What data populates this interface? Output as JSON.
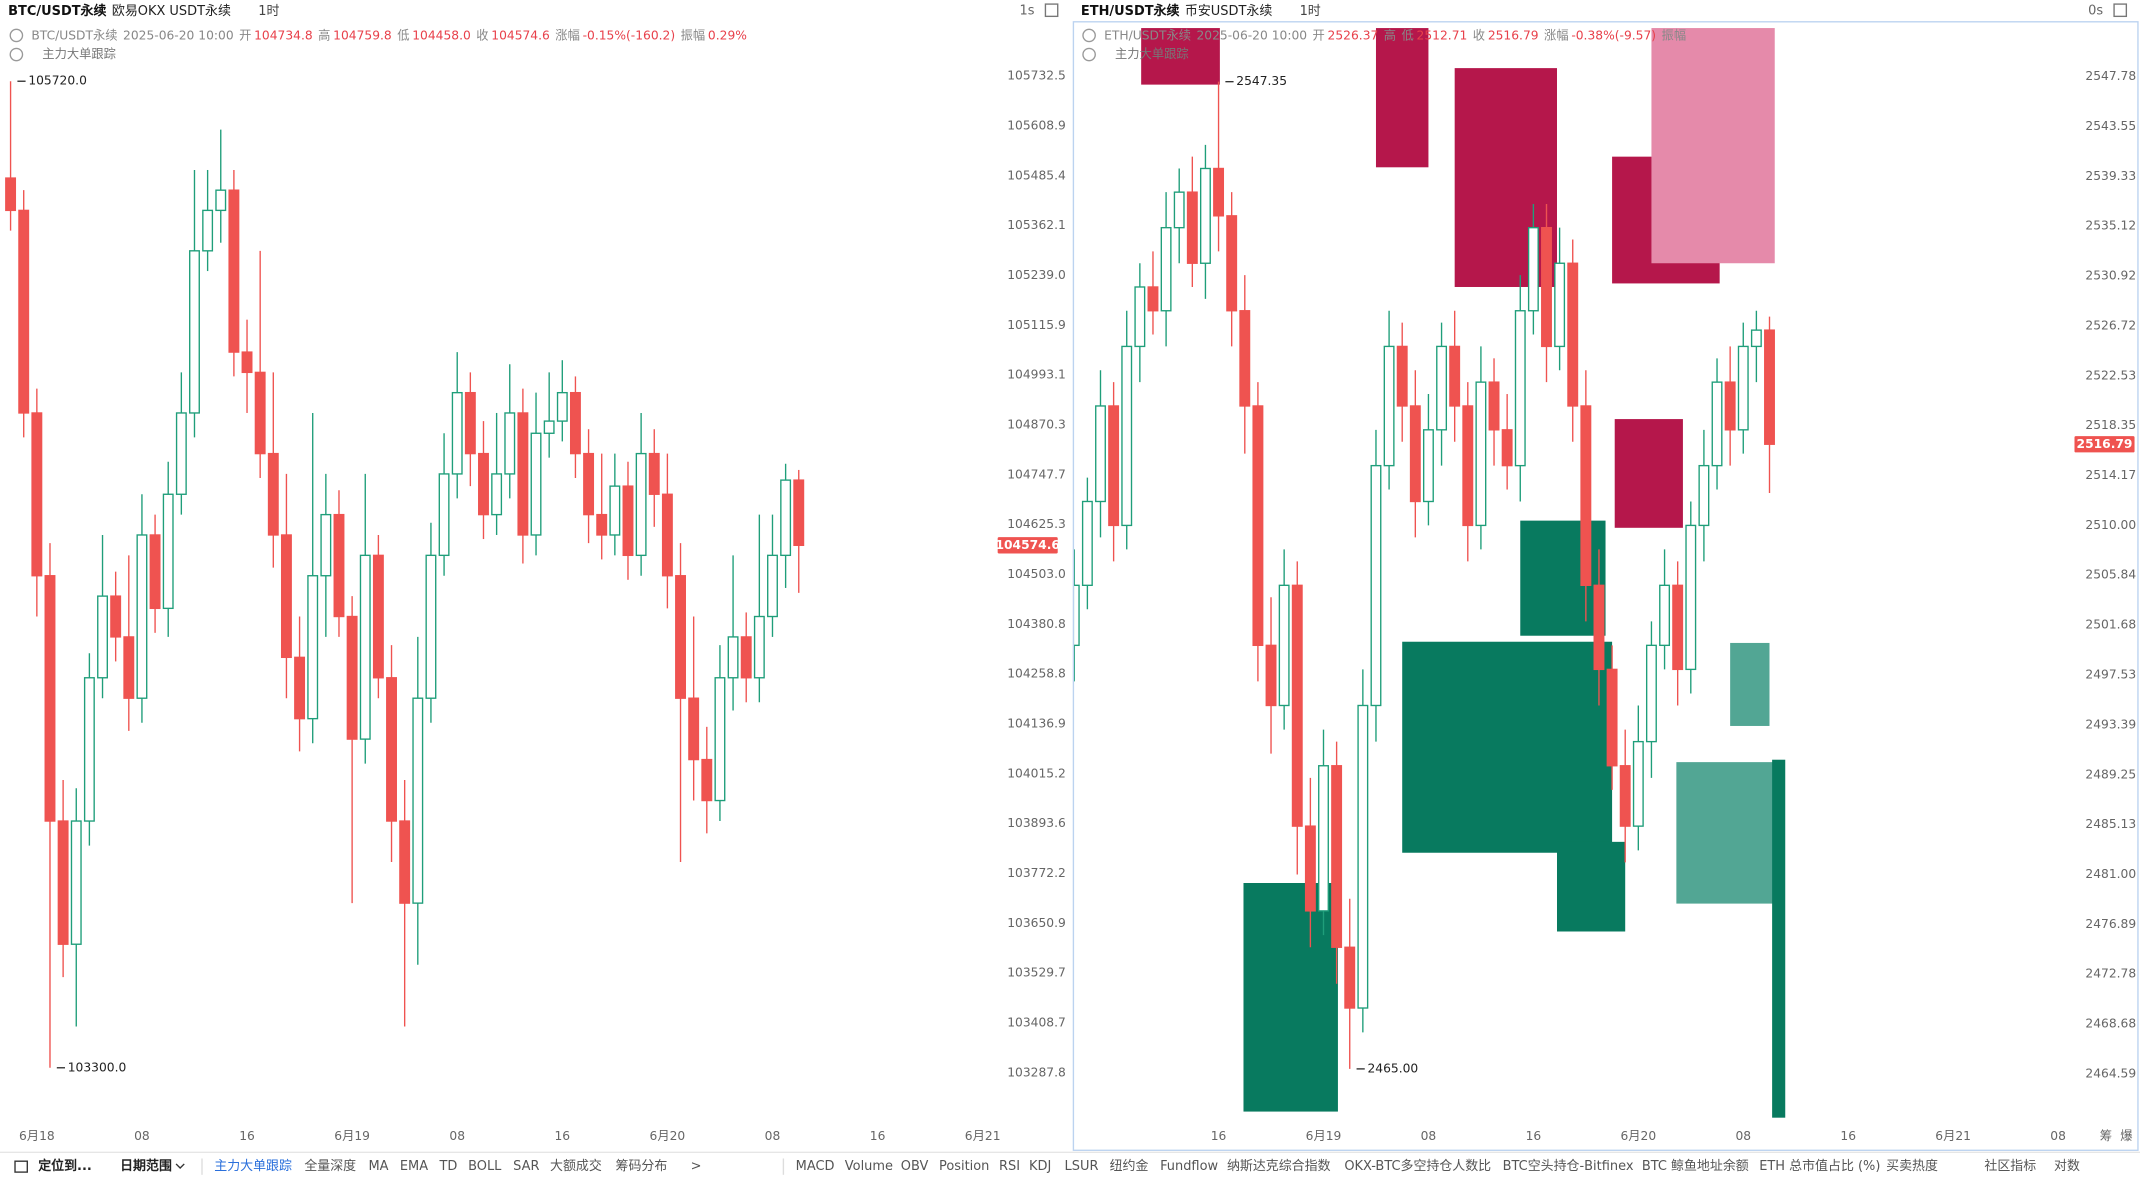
{
  "chart_data": [
    {
      "type": "candlestick",
      "symbol": "BTC/USDT永续",
      "exchange": "欧易OKX USDT永续",
      "interval": "1时",
      "speed": "1s",
      "info": {
        "symbol": "BTC/USDT永续",
        "datetime": "2025-06-20 10:00",
        "fields": [
          {
            "label": "开",
            "value": "104734.8"
          },
          {
            "label": "高",
            "value": "104759.8"
          },
          {
            "label": "低",
            "value": "104458.0"
          },
          {
            "label": "收",
            "value": "104574.6"
          },
          {
            "label": "涨幅",
            "value": "-0.15%(-160.2)"
          },
          {
            "label": "振幅",
            "value": "0.29%"
          }
        ]
      },
      "indicator": "主力大单跟踪",
      "x": [
        -2,
        -1,
        0,
        1,
        2,
        3,
        4,
        5,
        6,
        7,
        8,
        9,
        10,
        11,
        12,
        13,
        14,
        15,
        16,
        17,
        18,
        19,
        20,
        21,
        22,
        23,
        24,
        25,
        26,
        27,
        28,
        29,
        30,
        31,
        32,
        33,
        34,
        35,
        36,
        37,
        38,
        39,
        40,
        41,
        42,
        43,
        44,
        45,
        46,
        47,
        48,
        49,
        50,
        51,
        52,
        53,
        54,
        55,
        56,
        57,
        58
      ],
      "open": [
        105480,
        105400,
        104900,
        104500,
        103900,
        103600,
        103900,
        104250,
        104450,
        104350,
        104200,
        104600,
        104420,
        104700,
        104900,
        105300,
        105400,
        105450,
        105050,
        105000,
        104800,
        104600,
        104300,
        104150,
        104500,
        104650,
        104400,
        104100,
        104550,
        104250,
        103900,
        103700,
        104200,
        104550,
        104750,
        104950,
        104800,
        104650,
        104750,
        104900,
        104600,
        104850,
        104880,
        104950,
        104800,
        104650,
        104600,
        104720,
        104550,
        104800,
        104700,
        104500,
        104200,
        104050,
        103950,
        104250,
        104350,
        104250,
        104400,
        104550,
        104734.8
      ],
      "high": [
        105720,
        105450,
        104960,
        104580,
        104000,
        103980,
        104310,
        104600,
        104510,
        104550,
        104700,
        104650,
        104780,
        105000,
        105500,
        105500,
        105600,
        105500,
        105130,
        105300,
        105000,
        104750,
        104400,
        104900,
        104750,
        104710,
        104450,
        104750,
        104600,
        104330,
        104000,
        104350,
        104630,
        104850,
        105050,
        105000,
        104880,
        104900,
        105020,
        104960,
        104950,
        105000,
        105030,
        104990,
        104860,
        104800,
        104800,
        104780,
        104900,
        104860,
        104800,
        104580,
        104400,
        104130,
        104330,
        104550,
        104410,
        104650,
        104650,
        104775,
        104759.8
      ],
      "low": [
        105350,
        104840,
        104400,
        103300,
        103520,
        103400,
        103840,
        104200,
        104290,
        104120,
        104140,
        104360,
        104350,
        104650,
        104840,
        105250,
        105320,
        104990,
        104900,
        104740,
        104520,
        104200,
        104070,
        104090,
        104350,
        104350,
        103700,
        104040,
        104200,
        103800,
        103400,
        103550,
        104140,
        104500,
        104690,
        104720,
        104590,
        104600,
        104690,
        104530,
        104550,
        104790,
        104830,
        104740,
        104580,
        104540,
        104550,
        104490,
        104500,
        104620,
        104420,
        103800,
        103950,
        103870,
        103900,
        104170,
        104190,
        104190,
        104350,
        104470,
        104458.0
      ],
      "close": [
        105400,
        104900,
        104500,
        103900,
        103600,
        103900,
        104250,
        104450,
        104350,
        104200,
        104600,
        104420,
        104700,
        104900,
        105300,
        105400,
        105450,
        105050,
        105000,
        104800,
        104600,
        104300,
        104150,
        104500,
        104650,
        104400,
        104100,
        104550,
        104250,
        103900,
        103700,
        104200,
        104550,
        104750,
        104950,
        104800,
        104650,
        104750,
        104900,
        104600,
        104850,
        104880,
        104950,
        104800,
        104650,
        104600,
        104720,
        104550,
        104800,
        104700,
        104500,
        104200,
        104050,
        103950,
        104250,
        104350,
        104250,
        104400,
        104550,
        104734.8,
        104574.6
      ],
      "xlim": [
        -2.805,
        72.83
      ],
      "xticks": [
        {
          "value": 0,
          "label": "6月18"
        },
        {
          "value": 8,
          "label": "08"
        },
        16,
        {
          "value": 24,
          "label": "6月19"
        },
        {
          "value": 32,
          "label": "08"
        },
        {
          "value": 40,
          "label": "16"
        },
        {
          "value": 48,
          "label": "6月20"
        },
        {
          "value": 56,
          "label": "08"
        },
        {
          "value": 64,
          "label": "16"
        },
        {
          "value": 72,
          "label": "6月21"
        }
      ],
      "ylim": [
        103162.8,
        105860.8
      ],
      "log_scale": true,
      "yticks": [
        105732.5,
        105608.9,
        105485.4,
        105362.1,
        {
          "value": 105239,
          "label": "105239.0"
        },
        105115.9,
        104993.1,
        104870.3,
        104747.7,
        104625.3,
        {
          "value": 104503,
          "label": "104503.0"
        },
        104380.8,
        104258.8,
        104136.9,
        104015.2,
        103893.6,
        103772.2,
        103650.9,
        103529.7,
        103408.7,
        103287.8
      ],
      "up_color": "#1f9e7a",
      "down_color": "#ef5350",
      "high_marker": {
        "value": 105720,
        "label": "105720.0"
      },
      "low_marker": {
        "value": 103300,
        "label": "103300.0"
      },
      "last_price": {
        "value": 104574.6,
        "label": "104574.6"
      }
    },
    {
      "type": "candlestick",
      "symbol": "ETH/USDT永续",
      "exchange": "币安USDT永续",
      "interval": "1时",
      "speed": "0s",
      "info": {
        "symbol": "ETH/USDT永续",
        "datetime": "2025-06-20 10:00",
        "fields": [
          {
            "label": "开",
            "value": "2526.37"
          },
          {
            "label": "高"
          },
          {
            "label": "低",
            "value": "2512.71"
          },
          {
            "label": "收",
            "value": "2516.79"
          },
          {
            "label": "涨幅",
            "value": "-0.38%(-9.57)"
          },
          {
            "label": "振幅"
          }
        ]
      },
      "indicator": "主力大单跟踪",
      "x": [
        5,
        6,
        7,
        8,
        9,
        10,
        11,
        12,
        13,
        14,
        15,
        16,
        17,
        18,
        19,
        20,
        21,
        22,
        23,
        24,
        25,
        26,
        27,
        28,
        29,
        30,
        31,
        32,
        33,
        34,
        35,
        36,
        37,
        38,
        39,
        40,
        41,
        42,
        43,
        44,
        45,
        46,
        47,
        48,
        49,
        50,
        51,
        52,
        53,
        54,
        55,
        56,
        57,
        58
      ],
      "open": [
        2500,
        2505,
        2512,
        2520,
        2510,
        2525,
        2530,
        2528,
        2535,
        2538,
        2532,
        2540,
        2536,
        2528,
        2520,
        2500,
        2495,
        2505,
        2485,
        2478,
        2490,
        2475,
        2470,
        2495,
        2515,
        2525,
        2520,
        2512,
        2518,
        2525,
        2520,
        2510,
        2522,
        2518,
        2515,
        2528,
        2535,
        2525,
        2532,
        2520,
        2505,
        2498,
        2490,
        2485,
        2492,
        2500,
        2505,
        2498,
        2510,
        2515,
        2522,
        2518,
        2525,
        2526.37
      ],
      "high": [
        2508,
        2514,
        2523,
        2522,
        2528,
        2532,
        2533,
        2538,
        2540,
        2541,
        2542,
        2547.35,
        2538,
        2531,
        2522,
        2504,
        2508,
        2507,
        2489,
        2493,
        2492,
        2479,
        2498,
        2518,
        2528,
        2527,
        2523,
        2521,
        2527,
        2528,
        2522,
        2525,
        2524,
        2521,
        2531,
        2537,
        2537,
        2535,
        2534,
        2523,
        2508,
        2500,
        2493,
        2495,
        2502,
        2508,
        2507,
        2512,
        2518,
        2524,
        2525,
        2527,
        2528,
        2527.5
      ],
      "low": [
        2497,
        2503,
        2509,
        2507,
        2508,
        2522,
        2526,
        2525,
        2532,
        2530,
        2529,
        2533,
        2525,
        2516,
        2497,
        2491,
        2493,
        2481,
        2475,
        2476,
        2472,
        2465.0,
        2468,
        2492,
        2513,
        2517,
        2509,
        2510,
        2515,
        2517,
        2507,
        2508,
        2515,
        2513,
        2512,
        2526,
        2522,
        2523,
        2517,
        2502,
        2495,
        2488,
        2482,
        2483,
        2489,
        2498,
        2495,
        2496,
        2507,
        2513,
        2515,
        2516,
        2522,
        2512.71
      ],
      "close": [
        2505,
        2512,
        2520,
        2510,
        2525,
        2530,
        2528,
        2535,
        2538,
        2532,
        2540,
        2536,
        2528,
        2520,
        2500,
        2495,
        2505,
        2485,
        2478,
        2490,
        2475,
        2470,
        2495,
        2515,
        2525,
        2520,
        2512,
        2518,
        2525,
        2520,
        2510,
        2522,
        2518,
        2515,
        2528,
        2535,
        2525,
        2532,
        2520,
        2505,
        2498,
        2490,
        2485,
        2492,
        2500,
        2505,
        2498,
        2510,
        2515,
        2522,
        2518,
        2525,
        2526.37,
        2516.79
      ],
      "xlim": [
        4.987,
        80.73
      ],
      "xticks": [
        16,
        {
          "value": 24,
          "label": "6月19"
        },
        {
          "value": 32,
          "label": "08"
        },
        {
          "value": 40,
          "label": "16"
        },
        {
          "value": 48,
          "label": "6月20"
        },
        {
          "value": 56,
          "label": "08"
        },
        {
          "value": 64,
          "label": "16"
        },
        {
          "value": 72,
          "label": "6月21"
        },
        {
          "value": 80,
          "label": "08"
        }
      ],
      "ylim": [
        2460.45,
        2552.2
      ],
      "log_scale": true,
      "yticks": [
        2547.78,
        2543.55,
        2539.33,
        2535.12,
        2530.92,
        2526.72,
        2522.53,
        2518.35,
        2514.17,
        {
          "value": 2510,
          "label": "2510.00"
        },
        2505.84,
        2501.68,
        2497.53,
        2493.39,
        2489.25,
        2485.13,
        {
          "value": 2481,
          "label": "2481.00"
        },
        2476.89,
        2472.78,
        2468.68,
        2464.59
      ],
      "up_color": "#1f9e7a",
      "down_color": "#ef5350",
      "zones": [
        {
          "x": [
            10.1,
            16.1
          ],
          "y": [
            2547.1,
            2551.9
          ],
          "color": "#b5174b"
        },
        {
          "x": [
            28,
            32
          ],
          "y": [
            2540.1,
            2551.9
          ],
          "color": "#b5174b"
        },
        {
          "x": [
            34,
            41.8
          ],
          "y": [
            2530.0,
            2548.5
          ],
          "color": "#b5174b"
        },
        {
          "x": [
            46,
            54.2
          ],
          "y": [
            2530.3,
            2541
          ],
          "color": "#b5174b"
        },
        {
          "x": [
            49,
            58.4
          ],
          "y": [
            2532,
            2551.9
          ],
          "color": "#e58aaa"
        },
        {
          "x": [
            46.2,
            51.4
          ],
          "y": [
            2509.8,
            2518.9
          ],
          "color": "#b5174b"
        },
        {
          "x": [
            30,
            46
          ],
          "y": [
            2482.8,
            2500.3
          ],
          "color": "#087a5f"
        },
        {
          "x": [
            39,
            45.5
          ],
          "y": [
            2500.8,
            2510.4
          ],
          "color": "#087a5f"
        },
        {
          "x": [
            41.8,
            47
          ],
          "y": [
            2476.3,
            2483.7
          ],
          "color": "#087a5f"
        },
        {
          "x": [
            17.9,
            25.1
          ],
          "y": [
            2461.5,
            2480.3
          ],
          "color": "#087a5f"
        },
        {
          "x": [
            50.9,
            58.4
          ],
          "y": [
            2478.6,
            2490.3
          ],
          "color": "#52a694"
        },
        {
          "x": [
            55,
            58
          ],
          "y": [
            2493.3,
            2500.2
          ],
          "color": "#52a694"
        },
        {
          "x": [
            58.2,
            59.2
          ],
          "y": [
            2461,
            2490.5
          ],
          "color": "#087a5f"
        }
      ],
      "high_marker": {
        "value": 2547.35,
        "label": "2547.35"
      },
      "low_marker": {
        "value": 2465.0,
        "label": "2465.00"
      },
      "last_price": {
        "value": 2516.79,
        "label": "2516.79"
      }
    }
  ],
  "axis_buttons": [
    "筹",
    "爆"
  ],
  "toolbar": {
    "left": [
      "定位到...",
      "日期范围"
    ],
    "indicators": [
      "主力大单跟踪",
      "全量深度",
      "MA",
      "EMA",
      "TD",
      "BOLL",
      "SAR",
      "大额成交",
      "筹码分布",
      ">",
      "MACD",
      "Volume",
      "OBV",
      "Position",
      "RSI",
      "KDJ",
      "LSUR",
      "纽约金",
      "Fundflow",
      "纳斯达克综合指数",
      "OKX-BTC多空持仓人数比",
      "BTC空头持仓-Bitfinex",
      "BTC 鲸鱼地址余额",
      "ETH 总市值占比 (%)",
      "买卖热度",
      "社区指标",
      "对数"
    ]
  }
}
